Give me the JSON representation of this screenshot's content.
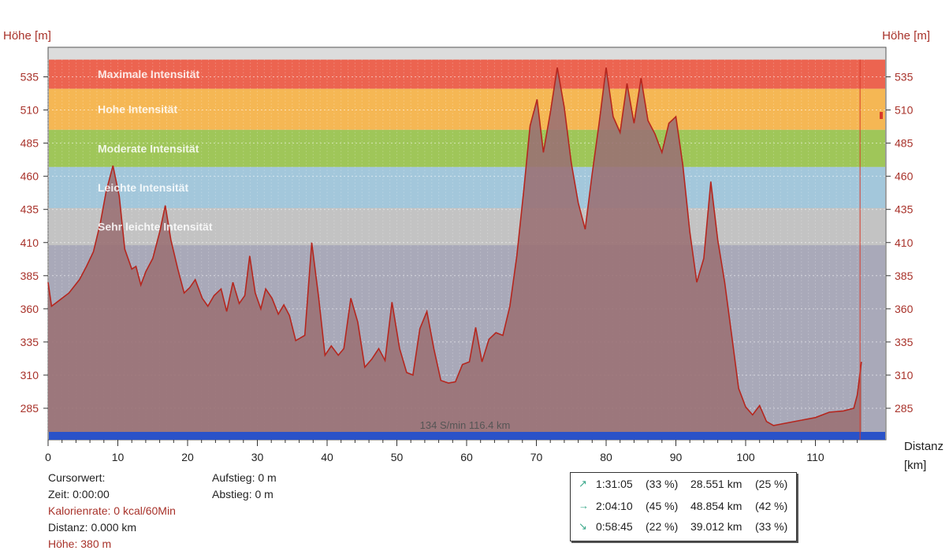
{
  "chart_data": {
    "type": "area",
    "ylabel_left": "Höhe [m]",
    "ylabel_right": "Höhe [m]",
    "xlabel": "Distanz",
    "xunit": "[km]",
    "xlim": [
      0,
      117
    ],
    "ylim": [
      260,
      555
    ],
    "x_ticks": [
      0,
      10,
      20,
      30,
      40,
      50,
      60,
      70,
      80,
      90,
      100,
      110
    ],
    "y_ticks": [
      285,
      310,
      335,
      360,
      385,
      410,
      435,
      460,
      485,
      510,
      535
    ],
    "grid": true,
    "zones": [
      {
        "label": "Maximale Intensität",
        "from": 526,
        "to": 548,
        "color": "#ec6450"
      },
      {
        "label": "Hohe Intensität",
        "from": 495,
        "to": 526,
        "color": "#f5b754"
      },
      {
        "label": "Moderate Intensität",
        "from": 467,
        "to": 495,
        "color": "#9fc659"
      },
      {
        "label": "Leichte Intensität",
        "from": 436,
        "to": 467,
        "color": "#a3c7db"
      },
      {
        "label": "Sehr leichte Intensität",
        "from": 408,
        "to": 436,
        "color": "#c3c3c3"
      }
    ],
    "series": [
      {
        "x": [
          0,
          0.5,
          1.5,
          3,
          4.5,
          5.5,
          6.5,
          7.5,
          8.3,
          9.3,
          10.2,
          11,
          12,
          12.6,
          13.3,
          14,
          15,
          16,
          16.8,
          17.6,
          18.6,
          19.5,
          20.3,
          21.1,
          22.1,
          22.9,
          23.8,
          24.8,
          25.6,
          26.5,
          27.4,
          28.2,
          28.9,
          29.7,
          30.5,
          31.2,
          32.1,
          33,
          33.8,
          34.6,
          35.5,
          36.8,
          37.8,
          38.8,
          39.7,
          40.6,
          41.6,
          42.4,
          43.4,
          44.4,
          45.4,
          46.4,
          47.4,
          48.3,
          49.3,
          50.4,
          51.4,
          52.3,
          53.3,
          54.3,
          55.3,
          56.3,
          57.4,
          58.4,
          59.4,
          60.4,
          61.3,
          62.2,
          63.2,
          64.2,
          65.2,
          66.2,
          67.2,
          68.2,
          69.1,
          70.1,
          71,
          72,
          73,
          74,
          75,
          76,
          77,
          78,
          79,
          80,
          81,
          82,
          83,
          84,
          85,
          86,
          87,
          88,
          89,
          90,
          91,
          92,
          93,
          94,
          95,
          96,
          97,
          98,
          99,
          100,
          101,
          102,
          103,
          104,
          106,
          108,
          110,
          112,
          114,
          115.5,
          116,
          116.6
        ],
        "y": [
          380,
          362,
          366,
          372,
          382,
          392,
          403,
          425,
          448,
          468,
          445,
          405,
          390,
          392,
          378,
          388,
          398,
          418,
          438,
          412,
          390,
          372,
          376,
          382,
          368,
          362,
          370,
          375,
          358,
          380,
          364,
          370,
          400,
          372,
          360,
          375,
          368,
          356,
          363,
          355,
          336,
          340,
          410,
          368,
          325,
          332,
          325,
          330,
          368,
          350,
          316,
          322,
          330,
          321,
          365,
          330,
          312,
          310,
          345,
          358,
          330,
          306,
          304,
          305,
          318,
          320,
          346,
          320,
          337,
          342,
          340,
          362,
          400,
          450,
          498,
          518,
          478,
          508,
          542,
          512,
          470,
          440,
          420,
          462,
          500,
          542,
          505,
          493,
          530,
          500,
          534,
          502,
          492,
          478,
          500,
          505,
          468,
          418,
          380,
          398,
          456,
          412,
          380,
          340,
          300,
          286,
          280,
          287,
          275,
          272,
          274,
          276,
          278,
          282,
          283,
          285,
          295,
          320
        ]
      }
    ],
    "cursor_note": "134 S/min 116.4 km"
  },
  "cursor_info": {
    "title": "Cursorwert:",
    "time": "Zeit: 0:00:00",
    "kcal": "Kalorienrate: 0 kcal/60Min",
    "distance": "Distanz: 0.000 km",
    "height": "Höhe:  380 m",
    "ascent": "Aufstieg: 0 m",
    "descent": "Abstieg: 0 m"
  },
  "stats": [
    {
      "arrow": "↗",
      "time": "1:31:05",
      "time_pct": "(33 %)",
      "dist": "28.551 km",
      "dist_pct": "(25 %)"
    },
    {
      "arrow": "→",
      "time": "2:04:10",
      "time_pct": "(45 %)",
      "dist": "48.854 km",
      "dist_pct": "(42 %)"
    },
    {
      "arrow": "↘",
      "time": "0:58:45",
      "time_pct": "(22 %)",
      "dist": "39.012 km",
      "dist_pct": "(33 %)"
    }
  ],
  "colors": {
    "area_fill": "#9a6f73",
    "area_line": "#b5261e",
    "background_zone": "#a9a9b9",
    "base_bar": "#2a52c8"
  }
}
